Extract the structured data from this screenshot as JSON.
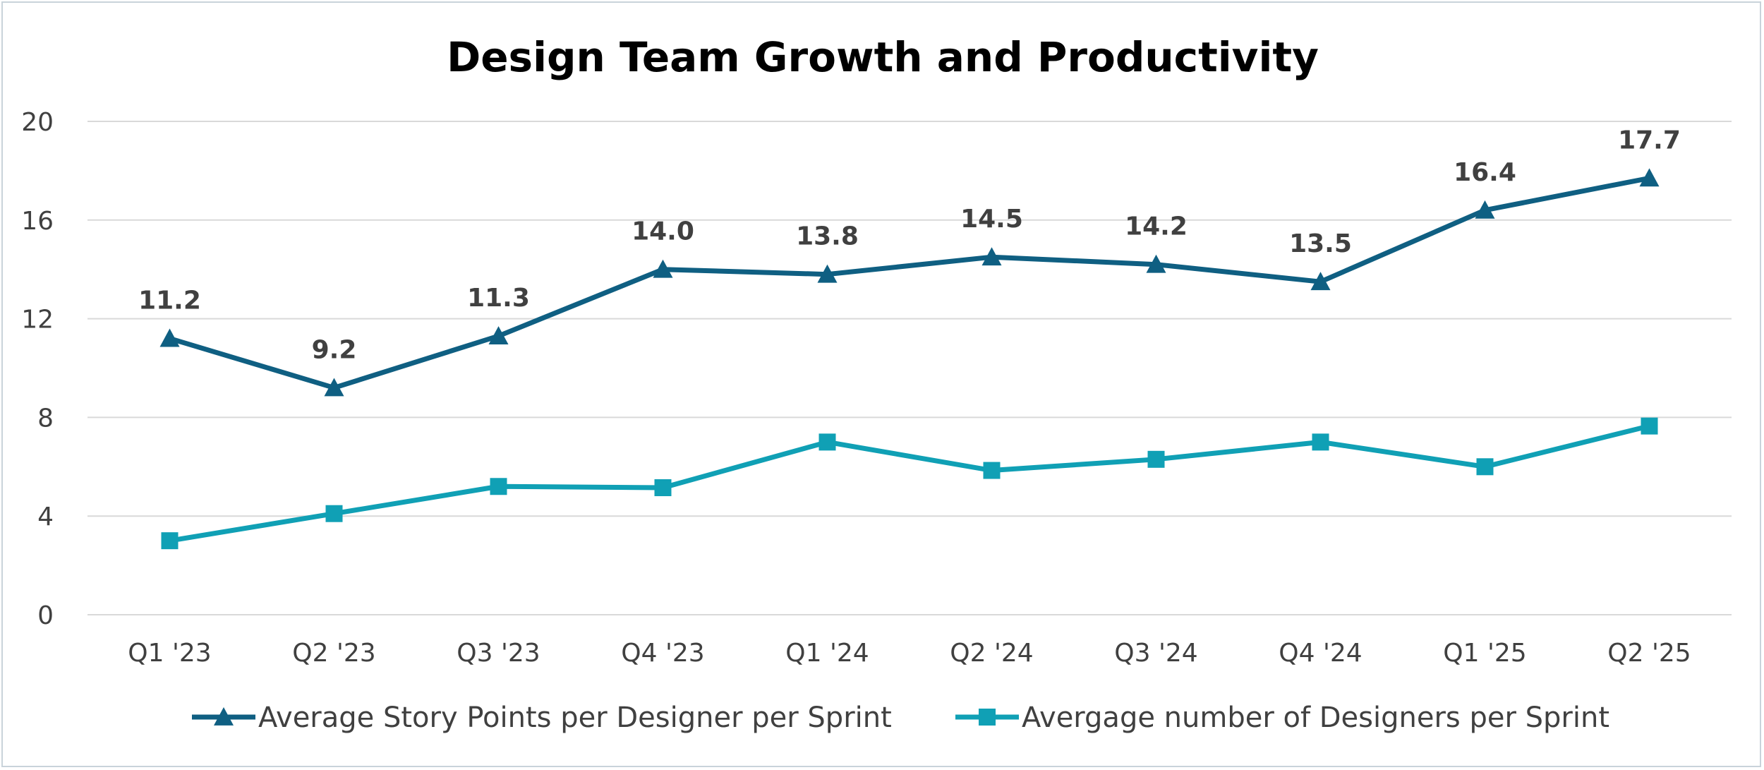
{
  "chart_data": {
    "type": "line",
    "title": "Design Team Growth and Productivity",
    "xlabel": "",
    "ylabel": "",
    "categories": [
      "Q1 '23",
      "Q2 '23",
      "Q3 '23",
      "Q4 '23",
      "Q1 '24",
      "Q2 '24",
      "Q3 '24",
      "Q4 '24",
      "Q1 '25",
      "Q2 '25"
    ],
    "ylim": [
      0,
      20
    ],
    "yticks": [
      0,
      4,
      8,
      12,
      16,
      20
    ],
    "grid": true,
    "legend_position": "bottom",
    "series": [
      {
        "name": "Average Story Points per Designer per Sprint",
        "values": [
          11.2,
          9.2,
          11.3,
          14.0,
          13.8,
          14.5,
          14.2,
          13.5,
          16.4,
          17.7
        ],
        "data_labels": [
          "11.2",
          "9.2",
          "11.3",
          "14.0",
          "13.8",
          "14.5",
          "14.2",
          "13.5",
          "16.4",
          "17.7"
        ],
        "marker": "triangle",
        "color": "#0f5f82"
      },
      {
        "name": "Avergage number of Designers per Sprint",
        "values": [
          3.0,
          4.1,
          5.2,
          5.15,
          7.0,
          5.85,
          6.3,
          7.0,
          6.0,
          7.65
        ],
        "marker": "square",
        "color": "#10a0b5"
      }
    ]
  }
}
